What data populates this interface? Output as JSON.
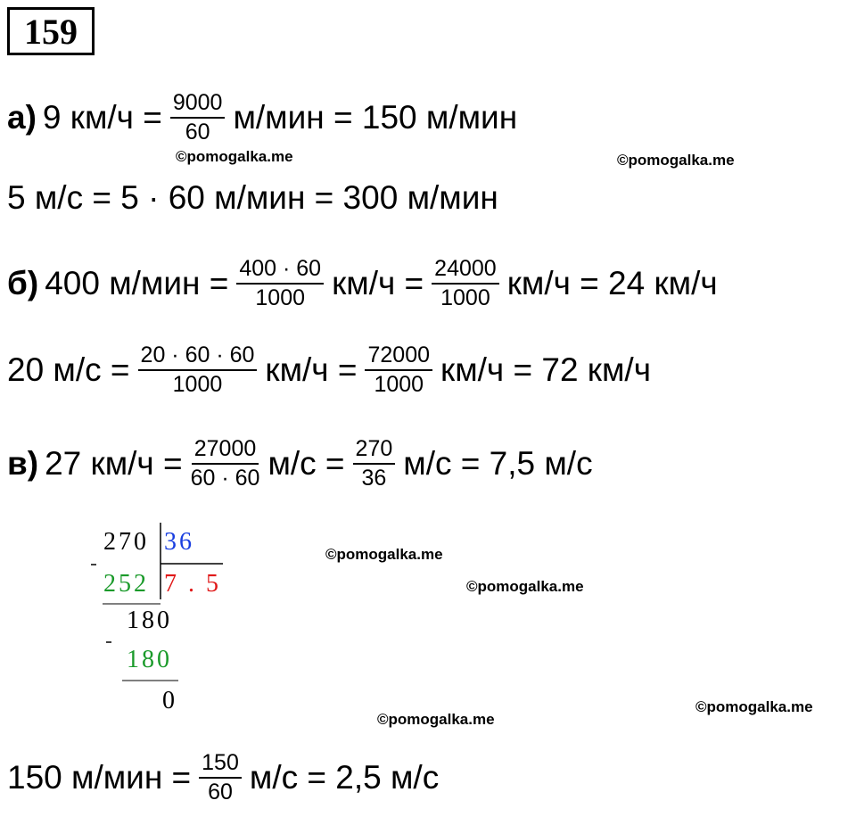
{
  "number": "159",
  "a": {
    "label": "а)",
    "t1": "9 км/ч =",
    "f1": {
      "num": "9000",
      "den": "60"
    },
    "t2": "м/мин = 150 м/мин"
  },
  "a2": {
    "t1": "5 м/с = 5 · 60 м/мин = 300 м/мин"
  },
  "b": {
    "label": "б)",
    "t1": "400 м/мин =",
    "f1": {
      "num": "400 · 60",
      "den": "1000"
    },
    "t2": "км/ч =",
    "f2": {
      "num": "24000",
      "den": "1000"
    },
    "t3": "км/ч = 24 км/ч"
  },
  "b2": {
    "t1": "20 м/с =",
    "f1": {
      "num": "20 · 60 · 60",
      "den": "1000"
    },
    "t2": "км/ч =",
    "f2": {
      "num": "72000",
      "den": "1000"
    },
    "t3": "км/ч = 72 км/ч"
  },
  "c": {
    "label": "в)",
    "t1": "27 км/ч =",
    "f1": {
      "num": "27000",
      "den": "60 · 60"
    },
    "t2": "м/с =",
    "f2": {
      "num": "270",
      "den": "36"
    },
    "t3": "м/с = 7,5 м/с"
  },
  "division": {
    "dividend": "270",
    "divisor": "36",
    "sub1": "252",
    "quotient": "7 . 5",
    "rem1": "180",
    "sub2": "180",
    "rem2": "0"
  },
  "final": {
    "t1": "150 м/мин =",
    "f1": {
      "num": "150",
      "den": "60"
    },
    "t2": "м/с = 2,5 м/с"
  },
  "watermarks": [
    "©pomogalka.me",
    "©pomogalka.me",
    "©pomogalka.me",
    "©pomogalka.me",
    "©pomogalka.me",
    "©pomogalka.me"
  ]
}
